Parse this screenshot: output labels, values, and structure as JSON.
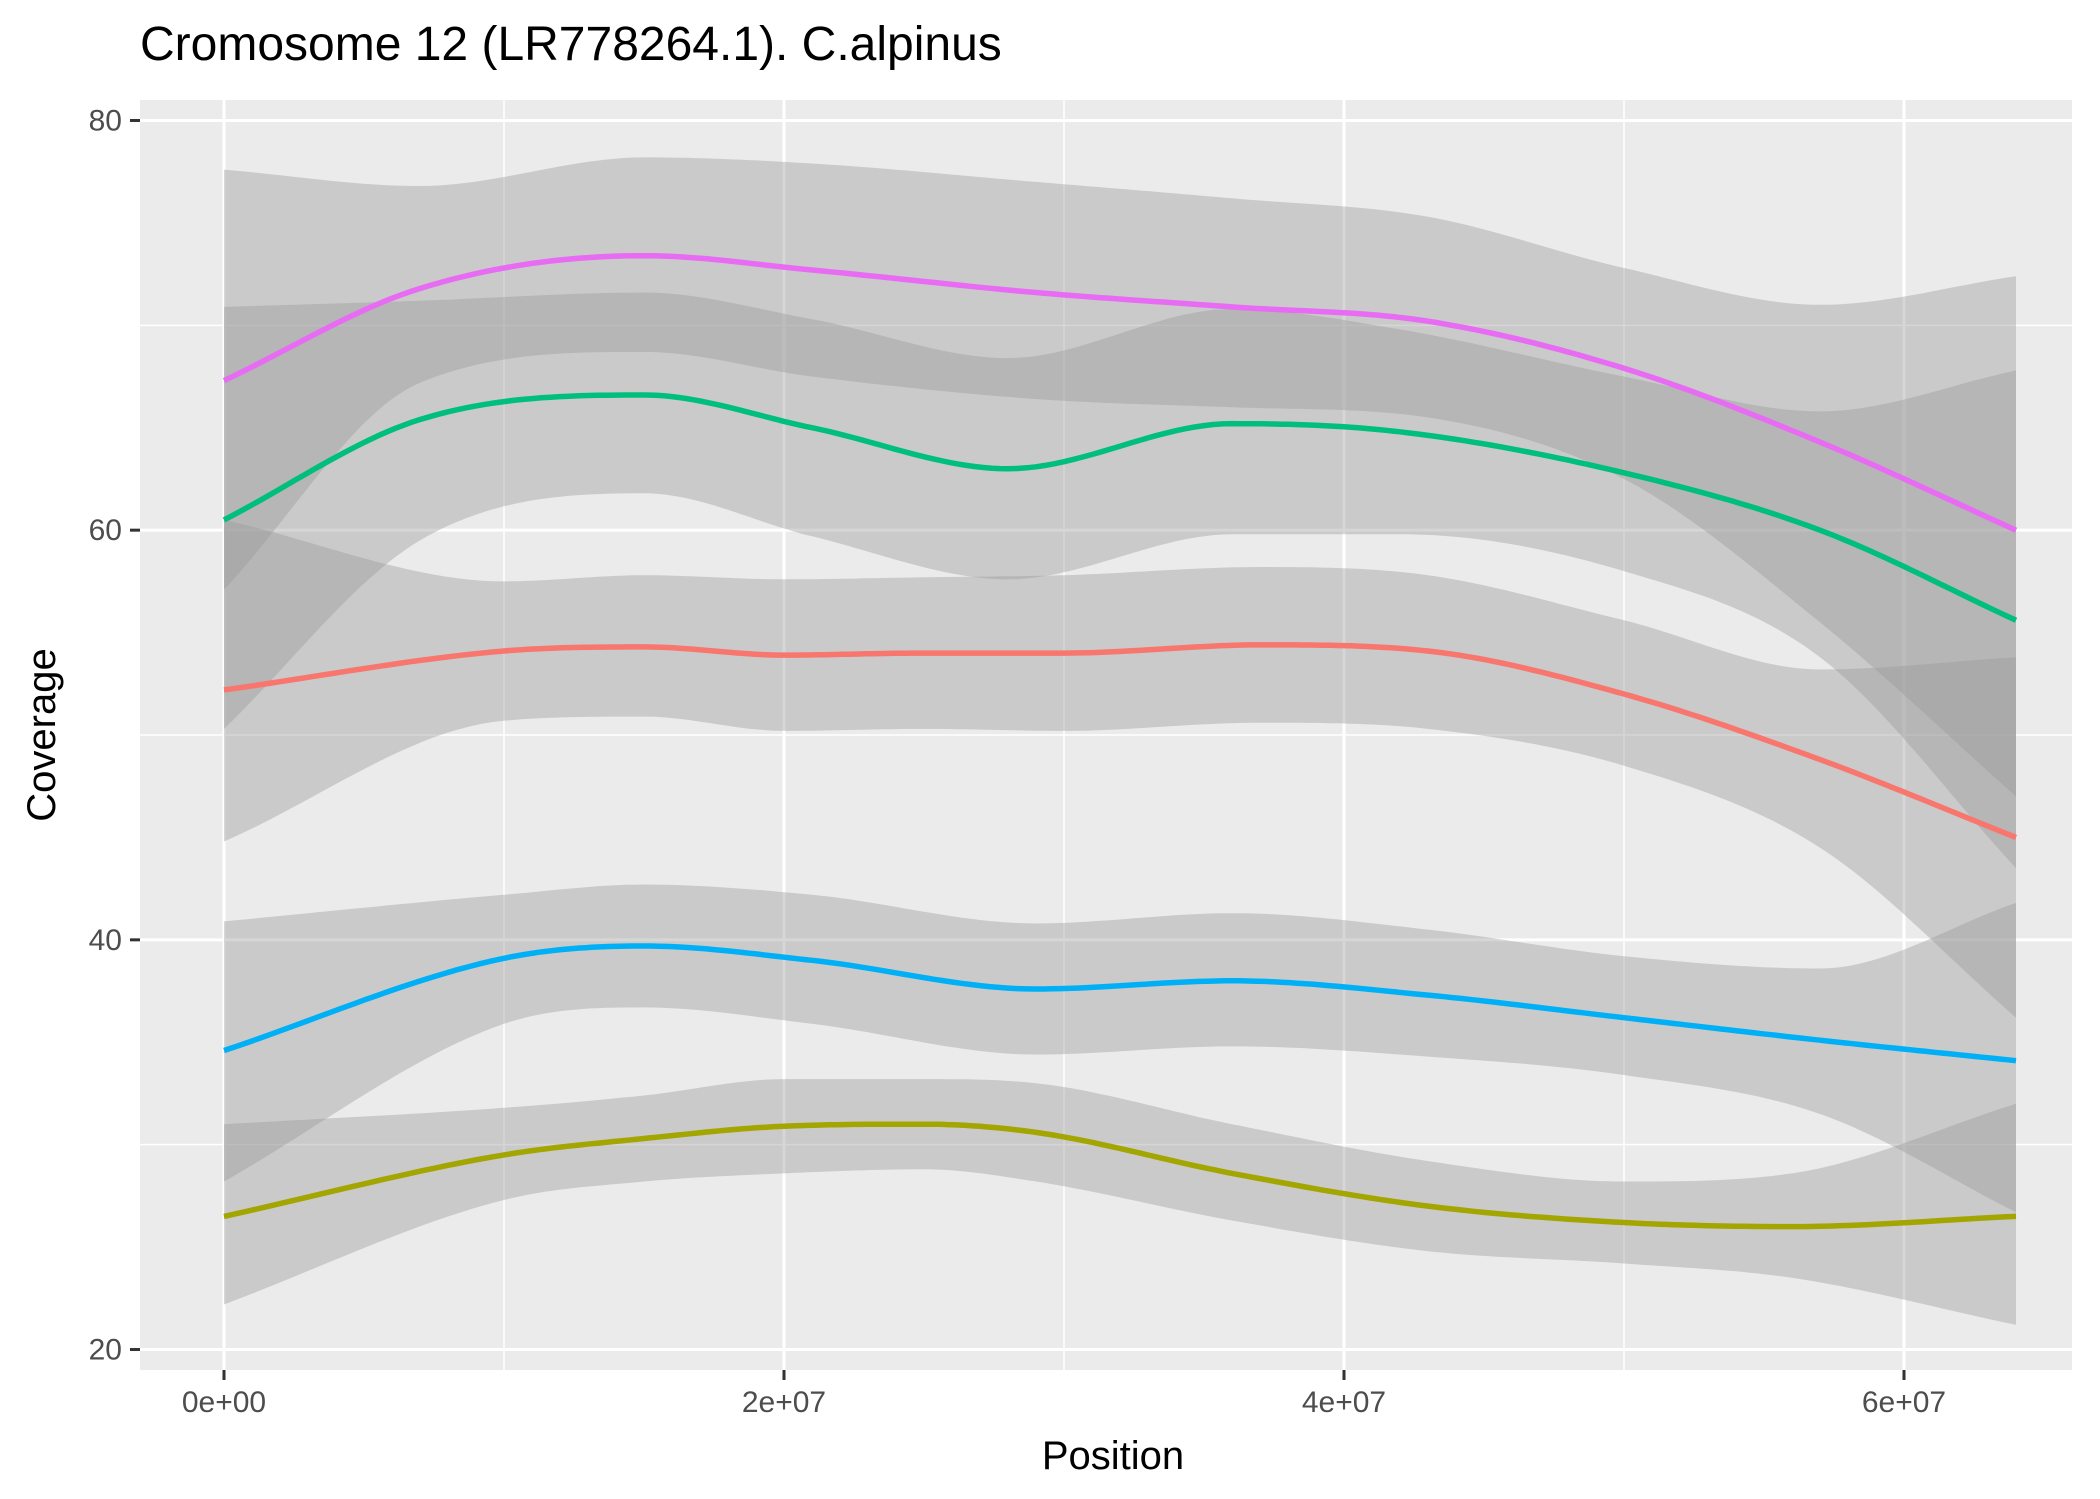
{
  "chart_data": {
    "type": "line",
    "title": "Cromosome 12 (LR778264.1). C.alpinus",
    "xlabel": "Position",
    "ylabel": "Coverage",
    "xlim": [
      -3000000,
      66000000
    ],
    "ylim": [
      19,
      81
    ],
    "x_ticks": [
      {
        "value": 0,
        "label": "0e+00"
      },
      {
        "value": 20000000,
        "label": "2e+07"
      },
      {
        "value": 40000000,
        "label": "4e+07"
      },
      {
        "value": 60000000,
        "label": "6e+07"
      }
    ],
    "x_minor": [
      10000000,
      30000000,
      50000000
    ],
    "y_ticks": [
      {
        "value": 20,
        "label": "20"
      },
      {
        "value": 40,
        "label": "40"
      },
      {
        "value": 60,
        "label": "60"
      },
      {
        "value": 80,
        "label": "80"
      }
    ],
    "y_minor": [
      30,
      50,
      70
    ],
    "grid": true,
    "legend": "none",
    "background": "#ebebeb",
    "ribbon_color": "#999999",
    "series": [
      {
        "color": "#F8766D",
        "x": [
          0,
          10000000,
          15000000,
          20000000,
          25000000,
          30000000,
          37000000,
          43000000,
          50000000,
          57000000,
          64000000
        ],
        "y": [
          52.2,
          54.1,
          54.3,
          53.9,
          54.0,
          54.0,
          54.4,
          54.1,
          52.0,
          48.8,
          45.0
        ],
        "lower": [
          44.8,
          50.7,
          50.9,
          50.2,
          50.3,
          50.2,
          50.6,
          50.3,
          48.5,
          44.5,
          36.2
        ],
        "upper": [
          60.5,
          57.5,
          57.8,
          57.6,
          57.7,
          57.8,
          58.2,
          57.8,
          55.6,
          53.2,
          53.8
        ]
      },
      {
        "color": "#A3A500",
        "x": [
          0,
          10000000,
          15000000,
          20000000,
          25000000,
          29000000,
          36000000,
          43000000,
          50000000,
          56000000,
          64000000
        ],
        "y": [
          26.5,
          29.5,
          30.3,
          30.9,
          31.0,
          30.6,
          28.6,
          27.0,
          26.2,
          26.0,
          26.5
        ],
        "lower": [
          22.2,
          27.3,
          28.2,
          28.6,
          28.8,
          28.2,
          26.3,
          24.8,
          24.2,
          23.5,
          21.2
        ],
        "upper": [
          31.0,
          31.8,
          32.4,
          33.2,
          33.2,
          33.0,
          31.0,
          29.2,
          28.2,
          28.6,
          32.0
        ]
      },
      {
        "color": "#00BF7D",
        "x": [
          0,
          7000000,
          15000000,
          21000000,
          28000000,
          36000000,
          42000000,
          50000000,
          57000000,
          64000000
        ],
        "y": [
          60.5,
          65.4,
          66.6,
          65.0,
          63.0,
          65.2,
          64.8,
          62.8,
          60.0,
          55.6
        ],
        "lower": [
          50.3,
          59.5,
          61.8,
          59.7,
          57.6,
          59.8,
          59.8,
          58.0,
          53.8,
          43.5
        ],
        "upper": [
          70.9,
          71.2,
          71.6,
          70.3,
          68.4,
          70.8,
          69.8,
          67.5,
          65.8,
          67.8
        ]
      },
      {
        "color": "#00B0F6",
        "x": [
          0,
          10000000,
          15000000,
          21000000,
          29000000,
          36000000,
          43000000,
          50000000,
          57000000,
          64000000
        ],
        "y": [
          34.6,
          39.1,
          39.7,
          39.0,
          37.6,
          38.0,
          37.3,
          36.2,
          35.1,
          34.1
        ],
        "lower": [
          28.2,
          35.9,
          36.7,
          35.9,
          34.4,
          34.8,
          34.3,
          33.4,
          31.5,
          26.7
        ],
        "upper": [
          40.9,
          42.2,
          42.7,
          42.2,
          40.8,
          41.3,
          40.5,
          39.2,
          38.6,
          41.8
        ]
      },
      {
        "color": "#E76BF3",
        "x": [
          0,
          7000000,
          15000000,
          21000000,
          29000000,
          36000000,
          43000000,
          50000000,
          57000000,
          64000000
        ],
        "y": [
          67.3,
          71.8,
          73.4,
          72.7,
          71.6,
          70.9,
          70.2,
          67.9,
          64.3,
          60.0
        ],
        "lower": [
          57.1,
          67.2,
          68.7,
          67.5,
          66.4,
          66.0,
          65.5,
          62.5,
          55.5,
          47.0
        ],
        "upper": [
          77.6,
          76.8,
          78.2,
          77.9,
          77.0,
          76.2,
          75.3,
          72.8,
          71.0,
          72.4
        ]
      }
    ]
  }
}
